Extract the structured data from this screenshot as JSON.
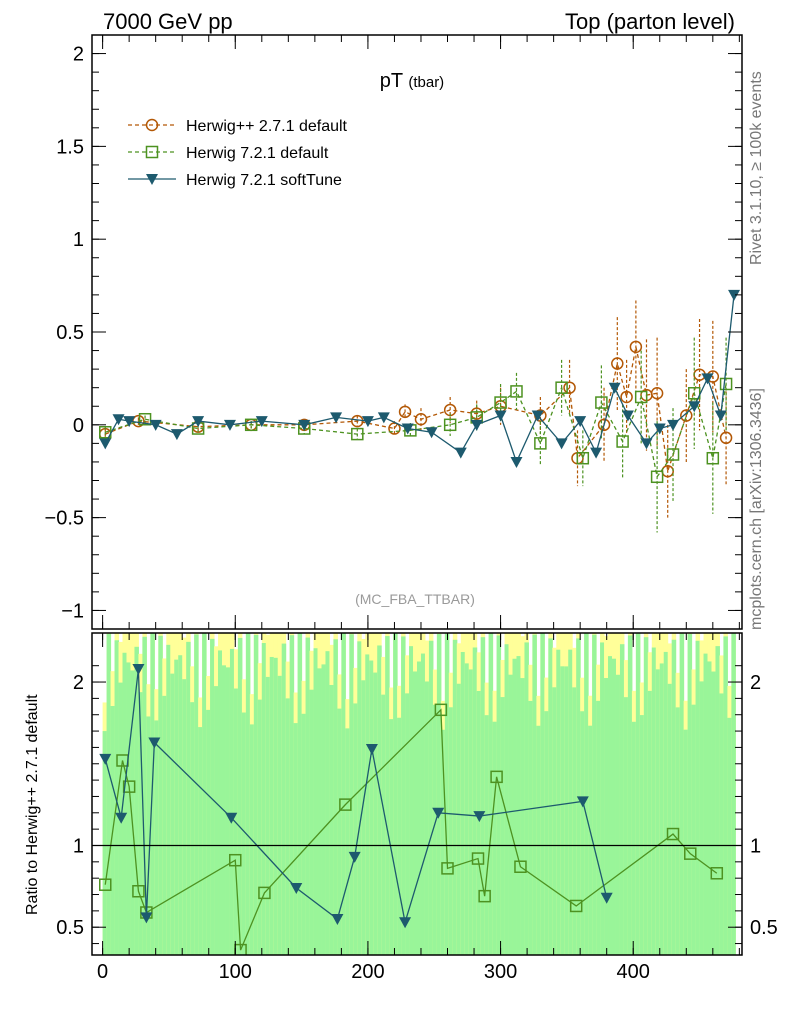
{
  "header": {
    "left": "7000 GeV pp",
    "right": "Top (parton level)"
  },
  "side_labels": {
    "rivet": "Rivet 3.1.10, ≥ 100k events",
    "mcplots": "mcplots.cern.ch [arXiv:1306.3436]"
  },
  "chart_data": [
    {
      "type": "scatter",
      "title_main": "pT",
      "title_sub": "(tbar)",
      "analysis_label": "(MC_FBA_TTBAR)",
      "xlim": [
        -8,
        482
      ],
      "ylim": [
        -1.1,
        2.1
      ],
      "y_ticks": [
        -1,
        -0.5,
        0,
        0.5,
        1,
        1.5,
        2
      ],
      "y_tick_labels": [
        "−1",
        "−0.5",
        "0",
        "0.5",
        "1",
        "1.5",
        "2"
      ],
      "legend_position": "top-left",
      "series": [
        {
          "name": "Herwig++ 2.7.1 default",
          "color": "#b35806",
          "marker": "open-circle",
          "line": "dashed",
          "x": [
            2,
            27,
            72,
            112,
            152,
            192,
            220,
            228,
            240,
            262,
            282,
            300,
            330,
            352,
            358,
            378,
            388,
            395,
            402,
            410,
            418,
            426,
            440,
            450,
            460,
            470
          ],
          "y": [
            -0.05,
            0.02,
            -0.01,
            0.0,
            0.0,
            0.02,
            -0.02,
            0.07,
            0.03,
            0.08,
            0.06,
            0.1,
            0.05,
            0.2,
            -0.18,
            0.0,
            0.33,
            0.15,
            0.42,
            0.16,
            0.17,
            -0.25,
            0.05,
            0.27,
            0.26,
            -0.07
          ],
          "err": [
            0.03,
            0.02,
            0.02,
            0.02,
            0.03,
            0.03,
            0.04,
            0.04,
            0.06,
            0.07,
            0.07,
            0.1,
            0.1,
            0.15,
            0.15,
            0.2,
            0.25,
            0.2,
            0.25,
            0.3,
            0.3,
            0.25,
            0.25,
            0.3,
            0.3,
            0.25
          ]
        },
        {
          "name": "Herwig 7.2.1 default",
          "color": "#4d9221",
          "marker": "open-square",
          "line": "dashed",
          "x": [
            2,
            32,
            72,
            112,
            152,
            192,
            232,
            262,
            282,
            300,
            312,
            330,
            346,
            362,
            376,
            392,
            406,
            418,
            430,
            446,
            460,
            470
          ],
          "y": [
            -0.04,
            0.03,
            -0.02,
            0.0,
            -0.02,
            -0.05,
            -0.03,
            0.0,
            0.04,
            0.12,
            0.18,
            -0.1,
            0.2,
            -0.18,
            0.12,
            -0.09,
            0.15,
            -0.28,
            -0.16,
            0.17,
            -0.18,
            0.22
          ],
          "err": [
            0.03,
            0.02,
            0.02,
            0.02,
            0.03,
            0.03,
            0.04,
            0.06,
            0.07,
            0.1,
            0.1,
            0.12,
            0.15,
            0.15,
            0.2,
            0.2,
            0.25,
            0.3,
            0.25,
            0.3,
            0.3,
            0.25
          ]
        },
        {
          "name": "Herwig 7.2.1 softTune",
          "color": "#1d5a6e",
          "marker": "filled-triangle-down",
          "line": "solid",
          "x": [
            2,
            12,
            20,
            40,
            56,
            72,
            96,
            120,
            152,
            176,
            200,
            212,
            230,
            248,
            270,
            282,
            300,
            312,
            328,
            346,
            360,
            372,
            386,
            396,
            410,
            420,
            430,
            446,
            456,
            466,
            476
          ],
          "y": [
            -0.1,
            0.03,
            0.02,
            0.0,
            -0.05,
            0.02,
            0.0,
            0.02,
            0.0,
            0.04,
            0.02,
            0.04,
            -0.02,
            -0.04,
            -0.15,
            0.0,
            0.05,
            -0.2,
            0.05,
            -0.1,
            0.02,
            -0.15,
            0.2,
            0.05,
            -0.1,
            -0.02,
            0.0,
            0.1,
            0.25,
            0.05,
            0.7
          ]
        }
      ]
    },
    {
      "type": "scatter",
      "ylabel": "Ratio to Herwig++ 2.7.1 default",
      "xlim": [
        -8,
        482
      ],
      "ylim": [
        0.33,
        2.3
      ],
      "x_ticks": [
        0,
        100,
        200,
        300,
        400
      ],
      "y_ticks": [
        0.5,
        1,
        2
      ],
      "reference_line": 1,
      "series": [
        {
          "name": "Herwig 7.2.1 default",
          "color": "#4d9221",
          "marker": "open-square",
          "x": [
            2,
            15,
            20,
            27,
            33,
            100,
            104,
            122,
            183,
            255,
            260,
            283,
            288,
            297,
            315,
            357,
            430,
            443,
            463
          ],
          "y": [
            0.76,
            1.52,
            1.36,
            0.72,
            0.59,
            0.91,
            0.36,
            0.71,
            1.25,
            1.83,
            0.86,
            0.92,
            0.69,
            1.42,
            0.87,
            0.63,
            1.07,
            0.95,
            0.83
          ]
        },
        {
          "name": "Herwig 7.2.1 softTune",
          "color": "#1d5a6e",
          "marker": "filled-triangle-down",
          "x": [
            2,
            14,
            27,
            33,
            39,
            97,
            146,
            177,
            190,
            203,
            228,
            253,
            284,
            362,
            380
          ],
          "y": [
            1.53,
            1.17,
            2.08,
            0.56,
            1.63,
            1.17,
            0.74,
            0.55,
            0.93,
            1.59,
            0.53,
            1.2,
            1.18,
            1.27,
            0.68
          ]
        }
      ]
    }
  ]
}
